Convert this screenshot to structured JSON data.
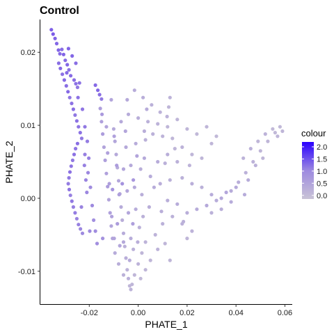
{
  "chart_data": {
    "type": "scatter",
    "title": "Control",
    "xlabel": "PHATE_1",
    "ylabel": "PHATE_2",
    "xlim": [
      -0.04,
      0.063
    ],
    "ylim": [
      -0.0145,
      0.0245
    ],
    "x_ticks": [
      -0.02,
      0.0,
      0.02,
      0.04,
      0.06
    ],
    "x_tick_labels": [
      "-0.02",
      "0.00",
      "0.02",
      "0.04",
      "0.06"
    ],
    "y_ticks": [
      -0.01,
      0.0,
      0.01,
      0.02
    ],
    "y_tick_labels": [
      "-0.01",
      "0.00",
      "0.01",
      "0.02"
    ],
    "grid": false,
    "legend": {
      "title": "colour",
      "position": "right",
      "type": "colorbar",
      "range": [
        -0.15,
        2.2
      ],
      "ticks": [
        2.0,
        1.5,
        1.0,
        0.5,
        0.0
      ],
      "tick_labels": [
        "2.0",
        "1.5",
        "1.0",
        "0.5",
        "0.0"
      ],
      "low_color": "#c9c3d6",
      "high_color": "#2a00ff"
    },
    "point_colors": {
      "low": "#c9c3d6",
      "mid": "#9b86e0",
      "high": "#5a2ff0"
    },
    "points": [
      {
        "x": -0.0355,
        "y": 0.0231,
        "c": 1.55
      },
      {
        "x": -0.0348,
        "y": 0.0225,
        "c": 1.6
      },
      {
        "x": -0.034,
        "y": 0.0219,
        "c": 1.5
      },
      {
        "x": -0.0333,
        "y": 0.0212,
        "c": 1.45
      },
      {
        "x": -0.0326,
        "y": 0.0203,
        "c": 1.5
      },
      {
        "x": -0.032,
        "y": 0.0198,
        "c": 1.4
      },
      {
        "x": -0.0312,
        "y": 0.0204,
        "c": 1.35
      },
      {
        "x": -0.0305,
        "y": 0.0197,
        "c": 1.5
      },
      {
        "x": -0.0298,
        "y": 0.0189,
        "c": 1.4
      },
      {
        "x": -0.029,
        "y": 0.0183,
        "c": 1.45
      },
      {
        "x": -0.0283,
        "y": 0.0176,
        "c": 1.3
      },
      {
        "x": -0.0276,
        "y": 0.0168,
        "c": 1.4
      },
      {
        "x": -0.0262,
        "y": 0.0162,
        "c": 1.35
      },
      {
        "x": -0.0255,
        "y": 0.0157,
        "c": 1.3
      },
      {
        "x": -0.0248,
        "y": 0.0152,
        "c": 1.2
      },
      {
        "x": -0.024,
        "y": 0.0158,
        "c": 1.3
      },
      {
        "x": -0.0175,
        "y": 0.0155,
        "c": 1.4
      },
      {
        "x": -0.0165,
        "y": 0.0148,
        "c": 1.45
      },
      {
        "x": -0.0158,
        "y": 0.0142,
        "c": 1.35
      },
      {
        "x": -0.015,
        "y": 0.0136,
        "c": 1.2
      },
      {
        "x": -0.0325,
        "y": 0.0185,
        "c": 1.35
      },
      {
        "x": -0.0318,
        "y": 0.0178,
        "c": 1.45
      },
      {
        "x": -0.031,
        "y": 0.017,
        "c": 1.3
      },
      {
        "x": -0.0302,
        "y": 0.0162,
        "c": 1.4
      },
      {
        "x": -0.0294,
        "y": 0.0154,
        "c": 1.35
      },
      {
        "x": -0.0287,
        "y": 0.0146,
        "c": 1.4
      },
      {
        "x": -0.028,
        "y": 0.0138,
        "c": 1.25
      },
      {
        "x": -0.0272,
        "y": 0.013,
        "c": 1.3
      },
      {
        "x": -0.0265,
        "y": 0.0122,
        "c": 1.35
      },
      {
        "x": -0.0258,
        "y": 0.0114,
        "c": 1.2
      },
      {
        "x": -0.0251,
        "y": 0.0106,
        "c": 1.3
      },
      {
        "x": -0.0244,
        "y": 0.0098,
        "c": 1.25
      },
      {
        "x": -0.0237,
        "y": 0.009,
        "c": 1.3
      },
      {
        "x": -0.0231,
        "y": 0.0082,
        "c": 1.2
      },
      {
        "x": -0.0248,
        "y": 0.0075,
        "c": 1.35
      },
      {
        "x": -0.0256,
        "y": 0.0068,
        "c": 1.25
      },
      {
        "x": -0.0262,
        "y": 0.006,
        "c": 1.3
      },
      {
        "x": -0.0268,
        "y": 0.0052,
        "c": 1.2
      },
      {
        "x": -0.0274,
        "y": 0.0044,
        "c": 1.25
      },
      {
        "x": -0.0279,
        "y": 0.0036,
        "c": 1.3
      },
      {
        "x": -0.0283,
        "y": 0.0028,
        "c": 1.2
      },
      {
        "x": -0.0286,
        "y": 0.002,
        "c": 1.15
      },
      {
        "x": -0.0282,
        "y": 0.0012,
        "c": 1.25
      },
      {
        "x": -0.0277,
        "y": 0.0004,
        "c": 1.1
      },
      {
        "x": -0.0271,
        "y": -0.0004,
        "c": 1.2
      },
      {
        "x": -0.0265,
        "y": -0.0012,
        "c": 1.1
      },
      {
        "x": -0.0258,
        "y": -0.002,
        "c": 1.15
      },
      {
        "x": -0.0251,
        "y": -0.0028,
        "c": 1.05
      },
      {
        "x": -0.0244,
        "y": -0.0036,
        "c": 1.1
      },
      {
        "x": -0.0236,
        "y": -0.0042,
        "c": 1.0
      },
      {
        "x": -0.0228,
        "y": -0.0048,
        "c": 0.95
      },
      {
        "x": -0.022,
        "y": 0.0045,
        "c": 1.1
      },
      {
        "x": -0.0214,
        "y": 0.0025,
        "c": 1.05
      },
      {
        "x": -0.021,
        "y": 0.0008,
        "c": 1.0
      },
      {
        "x": -0.0218,
        "y": 0.006,
        "c": 1.1
      },
      {
        "x": -0.0205,
        "y": 0.0035,
        "c": 1.0
      },
      {
        "x": -0.0195,
        "y": 0.0015,
        "c": 0.9
      },
      {
        "x": -0.0188,
        "y": -0.001,
        "c": 0.95
      },
      {
        "x": -0.0182,
        "y": -0.003,
        "c": 0.85
      },
      {
        "x": -0.0175,
        "y": -0.0045,
        "c": 0.9
      },
      {
        "x": -0.015,
        "y": 0.0105,
        "c": 0.5
      },
      {
        "x": -0.0145,
        "y": 0.0088,
        "c": 0.6
      },
      {
        "x": -0.014,
        "y": 0.007,
        "c": 0.45
      },
      {
        "x": -0.0135,
        "y": 0.0052,
        "c": 0.55
      },
      {
        "x": -0.013,
        "y": 0.0034,
        "c": 0.5
      },
      {
        "x": -0.0125,
        "y": 0.0016,
        "c": 0.6
      },
      {
        "x": -0.012,
        "y": -0.0002,
        "c": 0.45
      },
      {
        "x": -0.0115,
        "y": -0.002,
        "c": 0.5
      },
      {
        "x": -0.011,
        "y": -0.0038,
        "c": 0.4
      },
      {
        "x": -0.0105,
        "y": -0.0055,
        "c": 0.45
      },
      {
        "x": -0.0155,
        "y": 0.0123,
        "c": 0.55
      },
      {
        "x": -0.0148,
        "y": 0.0115,
        "c": 0.65
      },
      {
        "x": -0.01,
        "y": 0.0095,
        "c": 0.35
      },
      {
        "x": -0.0095,
        "y": 0.0078,
        "c": 0.4
      },
      {
        "x": -0.009,
        "y": 0.006,
        "c": 0.35
      },
      {
        "x": -0.0085,
        "y": 0.0042,
        "c": 0.3
      },
      {
        "x": -0.008,
        "y": 0.0024,
        "c": 0.4
      },
      {
        "x": -0.0075,
        "y": 0.0006,
        "c": 0.35
      },
      {
        "x": -0.007,
        "y": -0.0012,
        "c": 0.3
      },
      {
        "x": -0.0065,
        "y": -0.003,
        "c": 0.25
      },
      {
        "x": -0.006,
        "y": -0.0048,
        "c": 0.3
      },
      {
        "x": -0.0055,
        "y": -0.0066,
        "c": 0.2
      },
      {
        "x": -0.005,
        "y": -0.0082,
        "c": 0.25
      },
      {
        "x": -0.0045,
        "y": -0.0098,
        "c": 0.15
      },
      {
        "x": -0.004,
        "y": -0.011,
        "c": 0.2
      },
      {
        "x": -0.0035,
        "y": -0.012,
        "c": 0.1
      },
      {
        "x": -0.003,
        "y": -0.0125,
        "c": 0.15
      },
      {
        "x": -0.0025,
        "y": -0.0118,
        "c": 0.1
      },
      {
        "x": -0.006,
        "y": -0.0105,
        "c": 0.2
      },
      {
        "x": -0.008,
        "y": -0.009,
        "c": 0.25
      },
      {
        "x": -0.0095,
        "y": -0.0075,
        "c": 0.3
      },
      {
        "x": -0.0015,
        "y": -0.0105,
        "c": 0.1
      },
      {
        "x": 0.0,
        "y": -0.009,
        "c": 0.15
      },
      {
        "x": -0.002,
        "y": -0.007,
        "c": 0.2
      },
      {
        "x": 0.0015,
        "y": -0.0075,
        "c": 0.1
      },
      {
        "x": 0.003,
        "y": -0.006,
        "c": 0.15
      },
      {
        "x": -0.003,
        "y": -0.0055,
        "c": 0.3
      },
      {
        "x": 0.0005,
        "y": -0.004,
        "c": 0.2
      },
      {
        "x": -0.004,
        "y": -0.002,
        "c": 0.4
      },
      {
        "x": -0.001,
        "y": -0.0015,
        "c": 0.3
      },
      {
        "x": 0.002,
        "y": -0.0025,
        "c": 0.2
      },
      {
        "x": -0.0045,
        "y": 0.001,
        "c": 0.4
      },
      {
        "x": -0.0015,
        "y": 0.0015,
        "c": 0.35
      },
      {
        "x": 0.0015,
        "y": 0.0005,
        "c": 0.25
      },
      {
        "x": -0.006,
        "y": 0.004,
        "c": 0.4
      },
      {
        "x": -0.003,
        "y": 0.0045,
        "c": 0.35
      },
      {
        "x": 0.001,
        "y": 0.004,
        "c": 0.25
      },
      {
        "x": -0.005,
        "y": 0.007,
        "c": 0.35
      },
      {
        "x": -0.001,
        "y": 0.0075,
        "c": 0.3
      },
      {
        "x": 0.003,
        "y": 0.008,
        "c": 0.2
      },
      {
        "x": -0.007,
        "y": 0.0105,
        "c": 0.35
      },
      {
        "x": -0.004,
        "y": 0.0115,
        "c": 0.3
      },
      {
        "x": 0.0,
        "y": 0.011,
        "c": 0.25
      },
      {
        "x": 0.004,
        "y": 0.0105,
        "c": 0.2
      },
      {
        "x": 0.008,
        "y": 0.0102,
        "c": 0.15
      },
      {
        "x": 0.012,
        "y": 0.0098,
        "c": 0.1
      },
      {
        "x": 0.006,
        "y": 0.0088,
        "c": 0.2
      },
      {
        "x": 0.01,
        "y": 0.0085,
        "c": 0.15
      },
      {
        "x": 0.014,
        "y": 0.0082,
        "c": 0.1
      },
      {
        "x": 0.013,
        "y": 0.0138,
        "c": 0.15
      },
      {
        "x": 0.0125,
        "y": 0.0125,
        "c": 0.1
      },
      {
        "x": 0.0118,
        "y": 0.0112,
        "c": 0.15
      },
      {
        "x": 0.016,
        "y": 0.0108,
        "c": 0.1
      },
      {
        "x": 0.02,
        "y": 0.0095,
        "c": 0.1
      },
      {
        "x": 0.024,
        "y": 0.0088,
        "c": 0.05
      },
      {
        "x": 0.028,
        "y": 0.0098,
        "c": 0.1
      },
      {
        "x": 0.032,
        "y": 0.0085,
        "c": 0.05
      },
      {
        "x": 0.03,
        "y": 0.0075,
        "c": 0.1
      },
      {
        "x": 0.018,
        "y": 0.007,
        "c": 0.15
      },
      {
        "x": 0.022,
        "y": 0.006,
        "c": 0.1
      },
      {
        "x": 0.016,
        "y": 0.005,
        "c": 0.2
      },
      {
        "x": 0.012,
        "y": 0.006,
        "c": 0.25
      },
      {
        "x": 0.008,
        "y": 0.005,
        "c": 0.3
      },
      {
        "x": 0.005,
        "y": 0.003,
        "c": 0.3
      },
      {
        "x": 0.009,
        "y": 0.002,
        "c": 0.25
      },
      {
        "x": 0.013,
        "y": 0.0025,
        "c": 0.2
      },
      {
        "x": 0.018,
        "y": 0.0028,
        "c": 0.2
      },
      {
        "x": 0.022,
        "y": 0.002,
        "c": 0.25
      },
      {
        "x": 0.026,
        "y": 0.0015,
        "c": 0.2
      },
      {
        "x": 0.03,
        "y": 0.0005,
        "c": 0.3
      },
      {
        "x": 0.034,
        "y": 0.0,
        "c": 0.35
      },
      {
        "x": 0.038,
        "y": 0.001,
        "c": 0.3
      },
      {
        "x": 0.041,
        "y": 0.0022,
        "c": 0.25
      },
      {
        "x": 0.044,
        "y": 0.0035,
        "c": 0.2
      },
      {
        "x": 0.047,
        "y": 0.005,
        "c": 0.15
      },
      {
        "x": 0.05,
        "y": 0.0065,
        "c": 0.1
      },
      {
        "x": 0.053,
        "y": 0.0078,
        "c": 0.1
      },
      {
        "x": 0.056,
        "y": 0.009,
        "c": 0.05
      },
      {
        "x": 0.058,
        "y": 0.0098,
        "c": 0.05
      },
      {
        "x": 0.059,
        "y": 0.0092,
        "c": 0.1
      },
      {
        "x": 0.057,
        "y": 0.0085,
        "c": 0.1
      },
      {
        "x": 0.055,
        "y": 0.0095,
        "c": 0.05
      },
      {
        "x": 0.052,
        "y": 0.0088,
        "c": 0.15
      },
      {
        "x": 0.049,
        "y": 0.0078,
        "c": 0.1
      },
      {
        "x": 0.046,
        "y": 0.0068,
        "c": 0.2
      },
      {
        "x": 0.043,
        "y": 0.0055,
        "c": 0.15
      },
      {
        "x": 0.048,
        "y": 0.0045,
        "c": 0.2
      },
      {
        "x": 0.051,
        "y": 0.0055,
        "c": 0.1
      },
      {
        "x": 0.045,
        "y": 0.0025,
        "c": 0.3
      },
      {
        "x": 0.04,
        "y": 0.0015,
        "c": 0.35
      },
      {
        "x": 0.036,
        "y": 0.0008,
        "c": 0.4
      },
      {
        "x": 0.032,
        "y": -0.0003,
        "c": 0.3
      },
      {
        "x": 0.028,
        "y": -0.001,
        "c": 0.35
      },
      {
        "x": 0.024,
        "y": -0.0015,
        "c": 0.3
      },
      {
        "x": 0.02,
        "y": -0.002,
        "c": 0.25
      },
      {
        "x": 0.016,
        "y": -0.0008,
        "c": 0.3
      },
      {
        "x": 0.012,
        "y": -0.0003,
        "c": 0.25
      },
      {
        "x": 0.022,
        "y": -0.0045,
        "c": 0.15
      },
      {
        "x": 0.018,
        "y": -0.0035,
        "c": 0.2
      },
      {
        "x": 0.014,
        "y": -0.0025,
        "c": 0.2
      },
      {
        "x": 0.01,
        "y": -0.0035,
        "c": 0.2
      },
      {
        "x": 0.007,
        "y": -0.005,
        "c": 0.15
      },
      {
        "x": 0.011,
        "y": -0.0062,
        "c": 0.1
      },
      {
        "x": 0.013,
        "y": -0.0085,
        "c": 0.1
      },
      {
        "x": 0.008,
        "y": -0.007,
        "c": 0.15
      },
      {
        "x": 0.005,
        "y": -0.0085,
        "c": 0.1
      },
      {
        "x": 0.003,
        "y": -0.0098,
        "c": 0.1
      },
      {
        "x": 0.001,
        "y": -0.011,
        "c": 0.05
      },
      {
        "x": 0.0185,
        "y": -0.0032,
        "c": 0.2
      },
      {
        "x": 0.02,
        "y": -0.0055,
        "c": 0.1
      },
      {
        "x": 0.03,
        "y": -0.002,
        "c": 0.2
      },
      {
        "x": 0.034,
        "y": -0.0015,
        "c": 0.25
      },
      {
        "x": 0.038,
        "y": -0.0005,
        "c": 0.3
      },
      {
        "x": 0.0435,
        "y": 0.0005,
        "c": 0.3
      },
      {
        "x": -0.0015,
        "y": 0.0148,
        "c": 0.3
      },
      {
        "x": 0.002,
        "y": 0.0138,
        "c": 0.25
      },
      {
        "x": 0.0055,
        "y": 0.0128,
        "c": 0.2
      },
      {
        "x": -0.0045,
        "y": 0.0135,
        "c": 0.35
      },
      {
        "x": 0.009,
        "y": 0.0118,
        "c": 0.15
      },
      {
        "x": -0.011,
        "y": 0.0135,
        "c": 0.4
      },
      {
        "x": -0.013,
        "y": 0.0098,
        "c": 0.45
      },
      {
        "x": -0.0125,
        "y": 0.0062,
        "c": 0.5
      },
      {
        "x": -0.0118,
        "y": 0.002,
        "c": 0.55
      },
      {
        "x": -0.0108,
        "y": -0.0025,
        "c": 0.5
      },
      {
        "x": -0.0098,
        "y": -0.0055,
        "c": 0.45
      },
      {
        "x": -0.0085,
        "y": -0.0035,
        "c": 0.6
      },
      {
        "x": -0.0078,
        "y": 0.0005,
        "c": 0.55
      },
      {
        "x": -0.0088,
        "y": 0.0045,
        "c": 0.6
      },
      {
        "x": -0.0098,
        "y": 0.0085,
        "c": 0.5
      },
      {
        "x": -0.006,
        "y": -0.006,
        "c": 0.35
      },
      {
        "x": -0.0035,
        "y": -0.0085,
        "c": 0.3
      },
      {
        "x": -0.002,
        "y": 0.0025,
        "c": 0.7
      },
      {
        "x": -0.0065,
        "y": 0.002,
        "c": 0.8
      },
      {
        "x": -0.0105,
        "y": 0.0012,
        "c": 0.75
      },
      {
        "x": -0.0022,
        "y": -0.0035,
        "c": 0.55
      },
      {
        "x": 0.0025,
        "y": 0.0055,
        "c": 0.35
      },
      {
        "x": 0.0045,
        "y": -0.0012,
        "c": 0.25
      },
      {
        "x": -0.0002,
        "y": -0.006,
        "c": 0.25
      },
      {
        "x": -0.0075,
        "y": -0.0065,
        "c": 0.4
      },
      {
        "x": 0.0065,
        "y": 0.0015,
        "c": 0.3
      },
      {
        "x": 0.0025,
        "y": 0.0092,
        "c": 0.25
      },
      {
        "x": -0.0005,
        "y": 0.0058,
        "c": 0.45
      },
      {
        "x": 0.0095,
        "y": -0.0018,
        "c": 0.25
      },
      {
        "x": -0.0052,
        "y": 0.0092,
        "c": 0.4
      },
      {
        "x": 0.0035,
        "y": 0.0122,
        "c": 0.3
      },
      {
        "x": 0.011,
        "y": 0.0048,
        "c": 0.2
      },
      {
        "x": 0.021,
        "y": 0.0045,
        "c": 0.15
      },
      {
        "x": 0.026,
        "y": 0.0055,
        "c": 0.1
      },
      {
        "x": 0.015,
        "y": 0.0068,
        "c": 0.1
      },
      {
        "x": -0.0255,
        "y": 0.0185,
        "c": 1.35
      },
      {
        "x": -0.027,
        "y": 0.0195,
        "c": 1.45
      },
      {
        "x": -0.0285,
        "y": 0.0205,
        "c": 1.5
      },
      {
        "x": -0.0292,
        "y": 0.0172,
        "c": 1.4
      },
      {
        "x": -0.0246,
        "y": 0.0138,
        "c": 1.3
      },
      {
        "x": -0.0228,
        "y": 0.0122,
        "c": 1.25
      },
      {
        "x": -0.0218,
        "y": 0.0098,
        "c": 1.2
      },
      {
        "x": -0.0208,
        "y": 0.0078,
        "c": 1.15
      },
      {
        "x": -0.0202,
        "y": 0.0055,
        "c": 1.1
      },
      {
        "x": -0.0232,
        "y": -0.0012,
        "c": 1.05
      },
      {
        "x": -0.0198,
        "y": -0.0045,
        "c": 0.95
      },
      {
        "x": -0.0168,
        "y": -0.0062,
        "c": 0.85
      },
      {
        "x": -0.0145,
        "y": -0.0055,
        "c": 0.8
      }
    ]
  }
}
